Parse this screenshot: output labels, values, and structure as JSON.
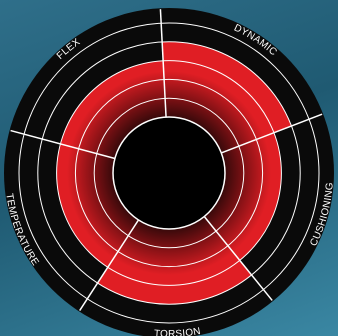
{
  "chart_data": {
    "type": "radial-bar",
    "categories": [
      "DYNAMIC",
      "CUSHIONING",
      "TORSION",
      "TEMPERATURE",
      "FLEX"
    ],
    "values": [
      4,
      3,
      4,
      3,
      3
    ],
    "max": 5,
    "rings": 5,
    "colors": {
      "fill": "#e01e24",
      "shadow": "#1a0606",
      "rim": "#0a0a0a",
      "gridline": "#ffffff",
      "label": "#ffffff"
    }
  }
}
